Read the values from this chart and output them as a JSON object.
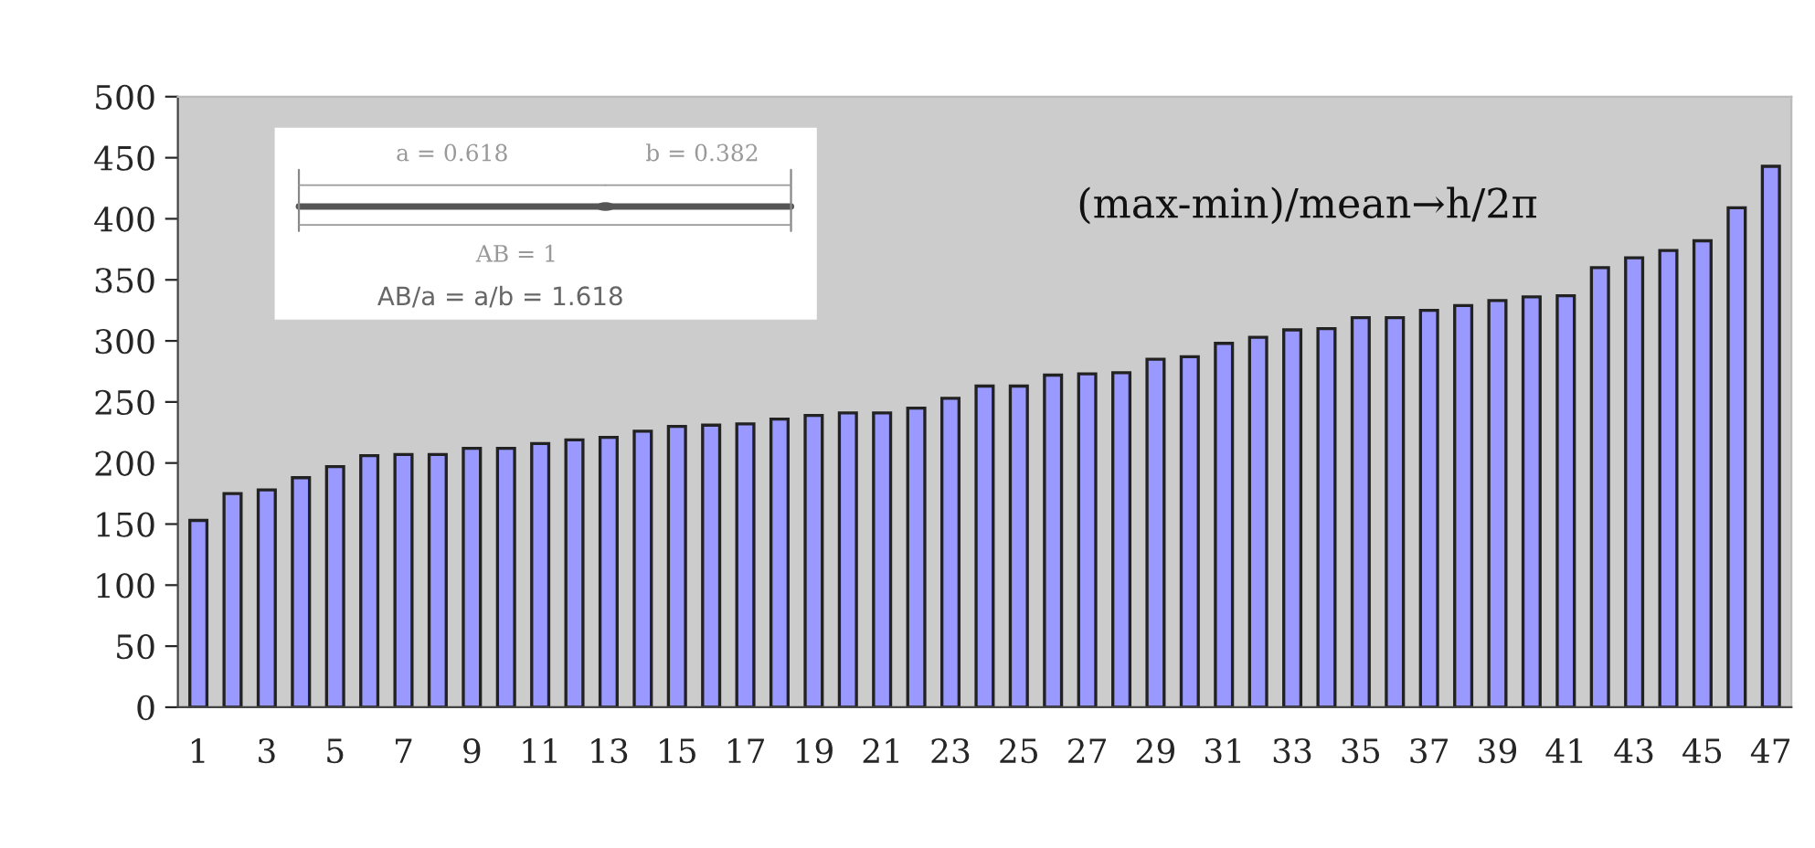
{
  "chart_data": {
    "type": "bar",
    "categories": [
      "1",
      null,
      "3",
      null,
      "5",
      null,
      "7",
      null,
      "9",
      null,
      "11",
      null,
      "13",
      null,
      "15",
      null,
      "17",
      null,
      "19",
      null,
      "21",
      null,
      "23",
      null,
      "25",
      null,
      "27",
      null,
      "29",
      null,
      "31",
      null,
      "33",
      null,
      "35",
      null,
      "37",
      null,
      "39",
      null,
      "41",
      null,
      "43",
      null,
      "45",
      null,
      "47"
    ],
    "values": [
      153,
      175,
      178,
      188,
      197,
      206,
      207,
      207,
      212,
      212,
      216,
      219,
      221,
      226,
      230,
      231,
      232,
      236,
      239,
      241,
      241,
      245,
      253,
      263,
      263,
      272,
      273,
      274,
      285,
      287,
      298,
      303,
      309,
      310,
      319,
      319,
      325,
      329,
      333,
      336,
      337,
      360,
      368,
      374,
      382,
      409,
      443
    ],
    "color": "#9999ff",
    "ylim": [
      0,
      500
    ],
    "yticks": [
      0,
      50,
      100,
      150,
      200,
      250,
      300,
      350,
      400,
      450,
      500
    ],
    "legend": false,
    "annotations": [
      "a = 0.618",
      "b = 0.382",
      "AB = 1",
      "AB/a = a/b = 1.618",
      "(max-min)/mean→h/2π"
    ]
  }
}
